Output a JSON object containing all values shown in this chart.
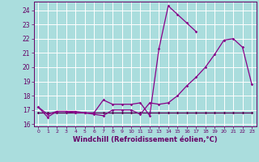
{
  "x": [
    0,
    1,
    2,
    3,
    4,
    5,
    6,
    7,
    8,
    9,
    10,
    11,
    12,
    13,
    14,
    15,
    16,
    17,
    18,
    19,
    20,
    21,
    22,
    23
  ],
  "line1": [
    17.2,
    16.5,
    16.9,
    16.9,
    16.9,
    16.8,
    16.8,
    17.7,
    17.4,
    17.4,
    17.4,
    17.5,
    16.6,
    21.3,
    24.3,
    23.7,
    23.1,
    22.5,
    null,
    null,
    null,
    null,
    null,
    null
  ],
  "line2": [
    17.2,
    16.7,
    16.9,
    16.9,
    16.8,
    16.8,
    16.7,
    16.6,
    17.0,
    17.0,
    17.0,
    16.7,
    17.5,
    17.4,
    17.5,
    18.0,
    18.7,
    19.3,
    20.0,
    20.9,
    21.9,
    22.0,
    21.4,
    18.8
  ],
  "line3": [
    16.8,
    16.8,
    16.8,
    16.8,
    16.8,
    16.8,
    16.8,
    16.8,
    16.8,
    16.8,
    16.8,
    16.8,
    16.8,
    16.8,
    16.8,
    16.8,
    16.8,
    16.8,
    16.8,
    16.8,
    16.8,
    16.8,
    16.8,
    16.8
  ],
  "line_color": "#880088",
  "line_color_dark": "#550055",
  "bg_color": "#aadddd",
  "grid_color": "#ffffff",
  "text_color": "#660066",
  "xlabel": "Windchill (Refroidissement éolien,°C)",
  "xlim": [
    -0.5,
    23.5
  ],
  "ylim": [
    15.85,
    24.6
  ],
  "yticks": [
    16,
    17,
    18,
    19,
    20,
    21,
    22,
    23,
    24
  ],
  "xticks": [
    0,
    1,
    2,
    3,
    4,
    5,
    6,
    7,
    8,
    9,
    10,
    11,
    12,
    13,
    14,
    15,
    16,
    17,
    18,
    19,
    20,
    21,
    22,
    23
  ]
}
